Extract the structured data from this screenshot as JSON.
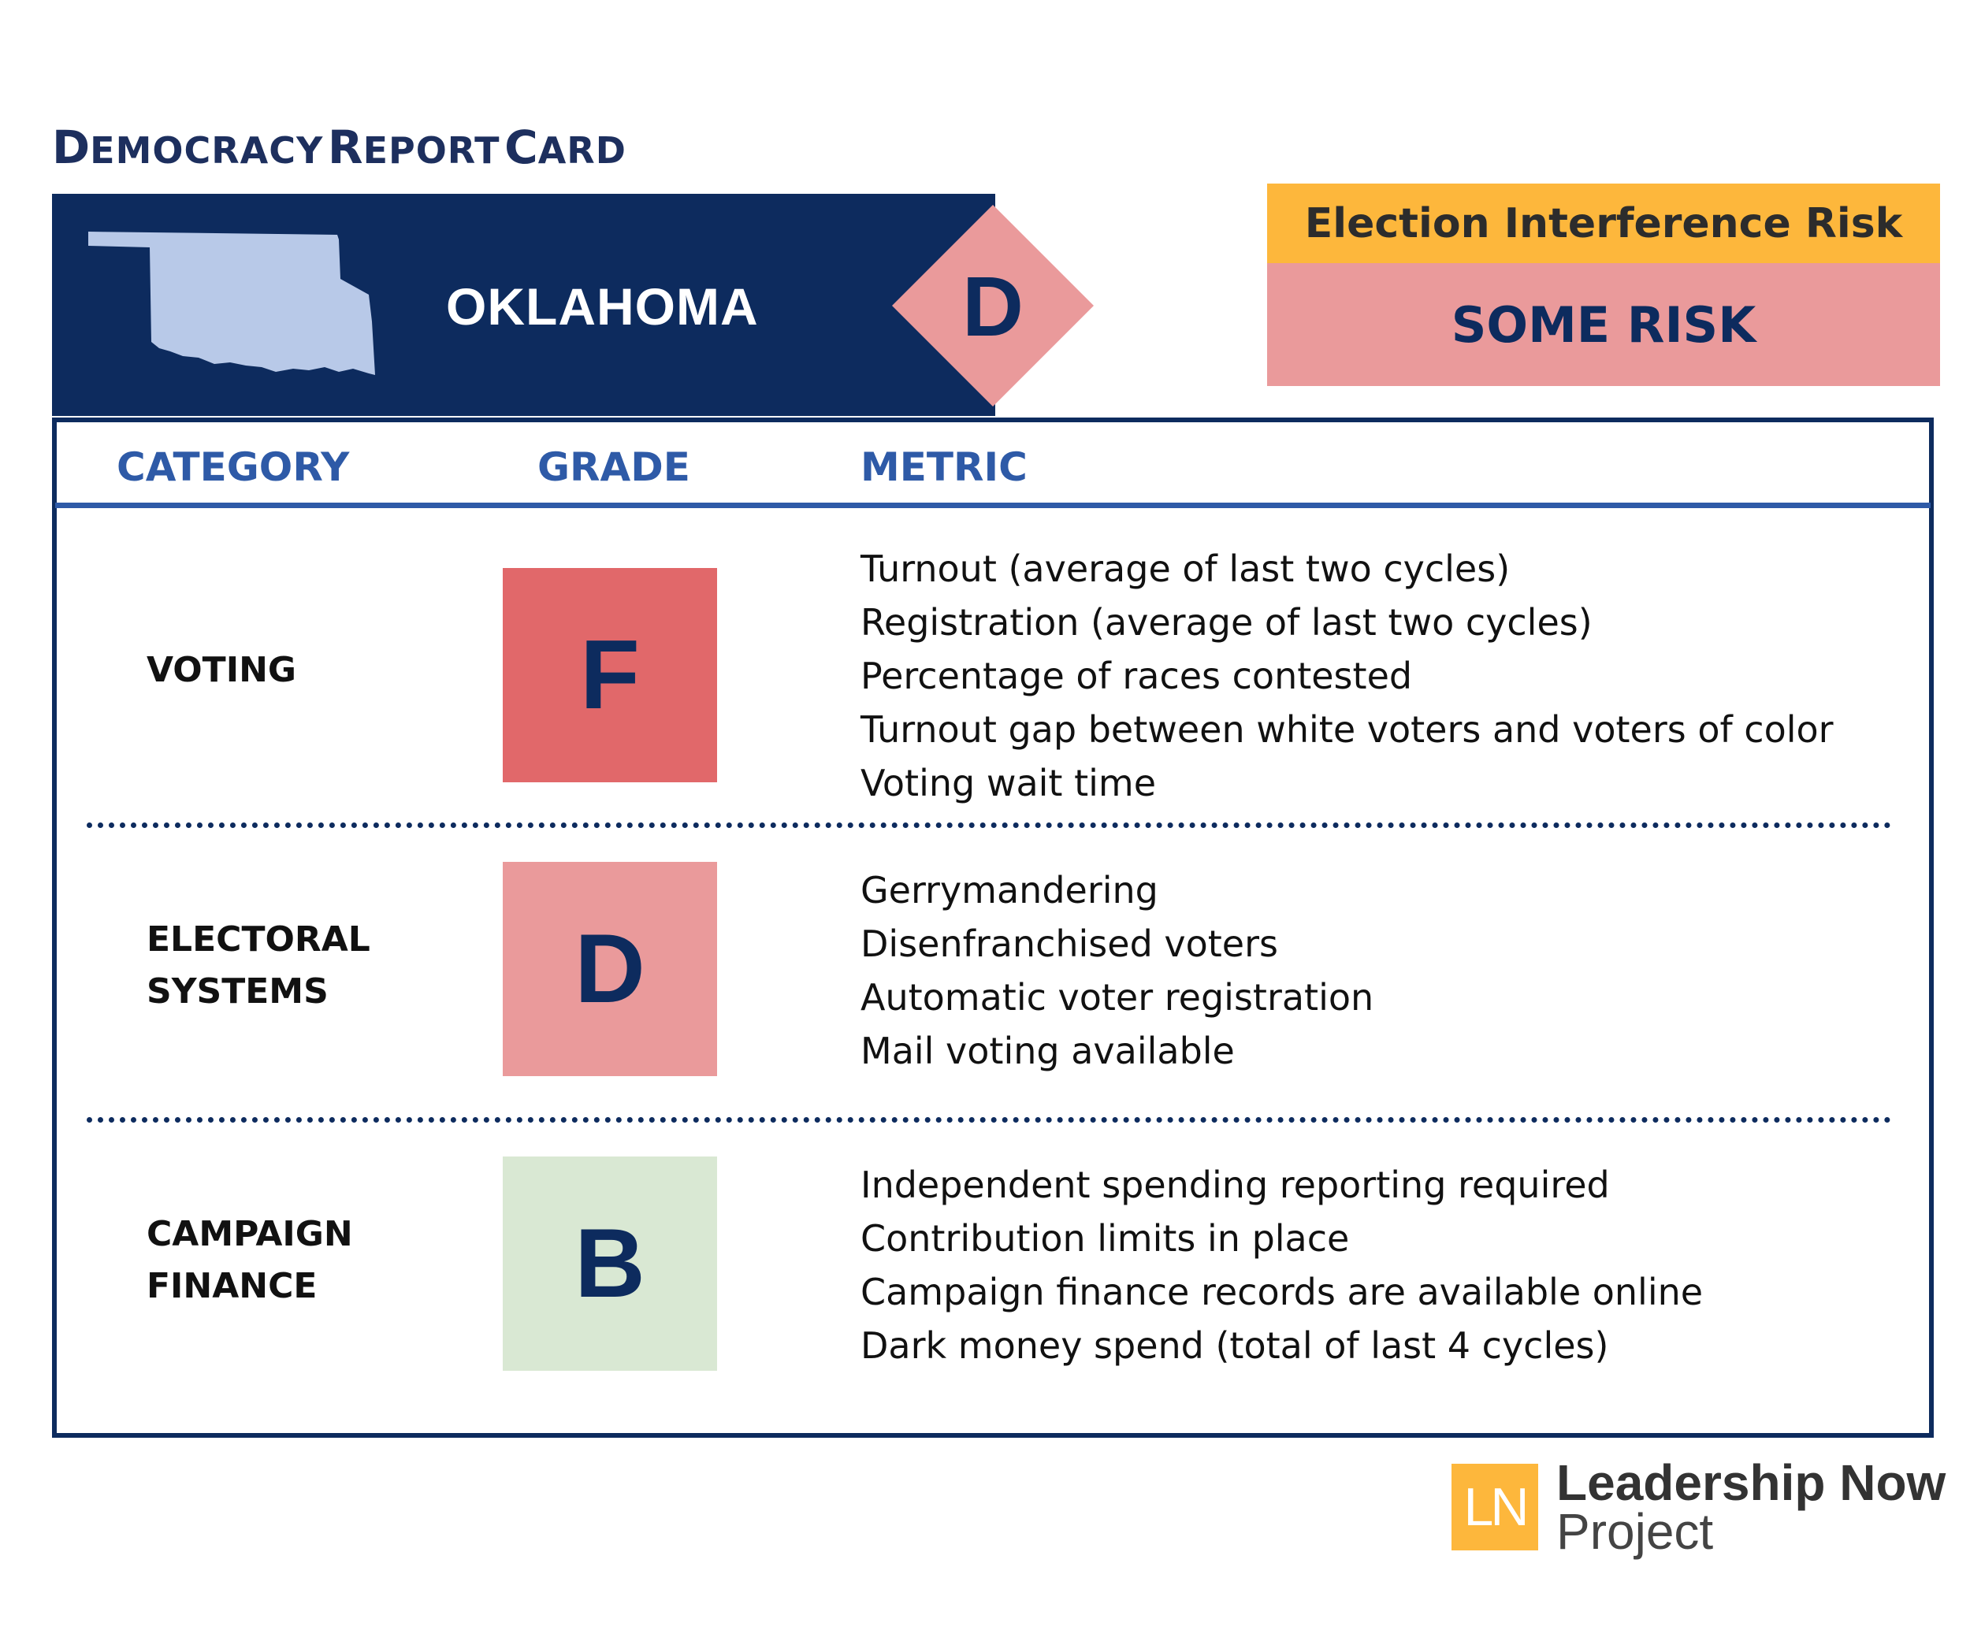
{
  "title": {
    "first_letter_1": "D",
    "rest_1": "EMOCRACY",
    "first_letter_2": "R",
    "rest_2": "EPORT",
    "first_letter_3": "C",
    "rest_3": "ARD"
  },
  "state": {
    "name": "OKLAHOMA",
    "overall_grade": "D"
  },
  "risk": {
    "header": "Election Interference Risk",
    "value": "SOME RISK"
  },
  "table": {
    "headers": {
      "category": "CATEGORY",
      "grade": "GRADE",
      "metric": "METRIC"
    },
    "rows": [
      {
        "category_lines": [
          "VOTING"
        ],
        "grade": "F",
        "grade_color": "#e1686a",
        "metrics": [
          "Turnout (average of last two cycles)",
          "Registration (average of last two cycles)",
          "Percentage of races contested",
          "Turnout gap between white voters and voters of color",
          "Voting wait time"
        ]
      },
      {
        "category_lines": [
          "ELECTORAL",
          "SYSTEMS"
        ],
        "grade": "D",
        "grade_color": "#ea9a9b",
        "metrics": [
          "Gerrymandering",
          "Disenfranchised voters",
          "Automatic voter registration",
          "Mail voting available"
        ]
      },
      {
        "category_lines": [
          "CAMPAIGN",
          "FINANCE"
        ],
        "grade": "B",
        "grade_color": "#d9e8d3",
        "metrics": [
          "Independent spending reporting required",
          "Contribution limits in place",
          "Campaign finance records are available online",
          "Dark money spend (total of last 4 cycles)"
        ]
      }
    ]
  },
  "logo": {
    "mark": "LN",
    "line1": "Leadership Now",
    "line2": "Project"
  },
  "colors": {
    "navy": "#0d2b5e",
    "blue": "#2e5aa7",
    "gold": "#fdb73c",
    "pink": "#ea9a9b",
    "map": "#b8c9e8"
  }
}
